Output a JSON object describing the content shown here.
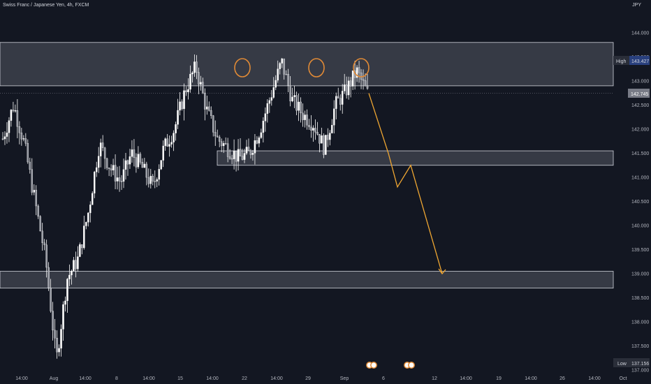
{
  "header": {
    "title": "Swiss Franc / Japanese Yen, 4h, FXCM",
    "currency": "JPY"
  },
  "badges": {
    "high_label": "High",
    "high_value": "143.427",
    "last_value": "142.745",
    "low_label": "Low",
    "low_value": "137.156"
  },
  "colors": {
    "background": "#131722",
    "candle": "#ffffff",
    "zone_fill": "#787b86",
    "zone_stroke": "#d1d4dc",
    "projection": "#f0a732",
    "circle": "#e08a36",
    "axis_text": "#b2b5be"
  },
  "chart_data": {
    "type": "candlestick",
    "symbol": "Swiss Franc / Japanese Yen, 4h, FXCM",
    "y_axis_ticks": [
      "144.000",
      "143.500",
      "143.000",
      "142.500",
      "142.000",
      "141.500",
      "141.000",
      "140.500",
      "140.000",
      "139.500",
      "139.000",
      "138.500",
      "138.000",
      "137.500",
      "137.000"
    ],
    "y_range": [
      136.95,
      144.5
    ],
    "x_axis_ticks": [
      "14:00",
      "Aug",
      "14:00",
      "8",
      "14:00",
      "15",
      "14:00",
      "22",
      "14:00",
      "29",
      "Sep",
      "6",
      "12",
      "14:00",
      "19",
      "14:00",
      "26",
      "14:00",
      "Oct"
    ],
    "price_path": [
      [
        "Jul 30 06:00",
        141.8
      ],
      [
        "Jul 31 00:00",
        142.5
      ],
      [
        "Jul 31 12:00",
        141.7
      ],
      [
        "Aug 01 00:00",
        140.5
      ],
      [
        "Aug 01 16:00",
        139.3
      ],
      [
        "Aug 02 12:00",
        137.2
      ],
      [
        "Aug 03 00:00",
        138.9
      ],
      [
        "Aug 05 00:00",
        139.3
      ],
      [
        "Aug 06 00:00",
        140.3
      ],
      [
        "Aug 07 00:00",
        141.7
      ],
      [
        "Aug 08 00:00",
        141.2
      ],
      [
        "Aug 09 00:00",
        140.9
      ],
      [
        "Aug 11 00:00",
        141.5
      ],
      [
        "Aug 12 00:00",
        141.2
      ],
      [
        "Aug 13 00:00",
        140.8
      ],
      [
        "Aug 14 00:00",
        141.6
      ],
      [
        "Aug 15 00:00",
        142.0
      ],
      [
        "Aug 16 00:00",
        142.8
      ],
      [
        "Aug 17 00:00",
        143.3
      ],
      [
        "Aug 18 00:00",
        142.4
      ],
      [
        "Aug 19 00:00",
        141.8
      ],
      [
        "Aug 20 00:00",
        141.6
      ],
      [
        "Aug 21 00:00",
        141.4
      ],
      [
        "Aug 22 00:00",
        141.5
      ],
      [
        "Aug 23 00:00",
        142.0
      ],
      [
        "Aug 24 00:00",
        142.7
      ],
      [
        "Aug 24 16:00",
        143.4
      ],
      [
        "Aug 25 12:00",
        142.6
      ],
      [
        "Aug 26 00:00",
        142.3
      ],
      [
        "Aug 27 00:00",
        142.1
      ],
      [
        "Aug 27 12:00",
        141.6
      ],
      [
        "Aug 28 00:00",
        142.5
      ],
      [
        "Aug 29 00:00",
        142.8
      ],
      [
        "Aug 29 16:00",
        143.2
      ],
      [
        "Aug 30 00:00",
        142.745
      ]
    ],
    "high": 143.427,
    "low": 137.156,
    "last": 142.745,
    "zones": [
      {
        "from": 142.9,
        "to": 143.8
      },
      {
        "from": 141.25,
        "to": 141.55
      },
      {
        "from": 138.7,
        "to": 139.05
      }
    ],
    "projection_path": [
      142.745,
      141.5,
      140.8,
      141.25,
      139.0
    ],
    "grid": false,
    "legend": "none"
  }
}
